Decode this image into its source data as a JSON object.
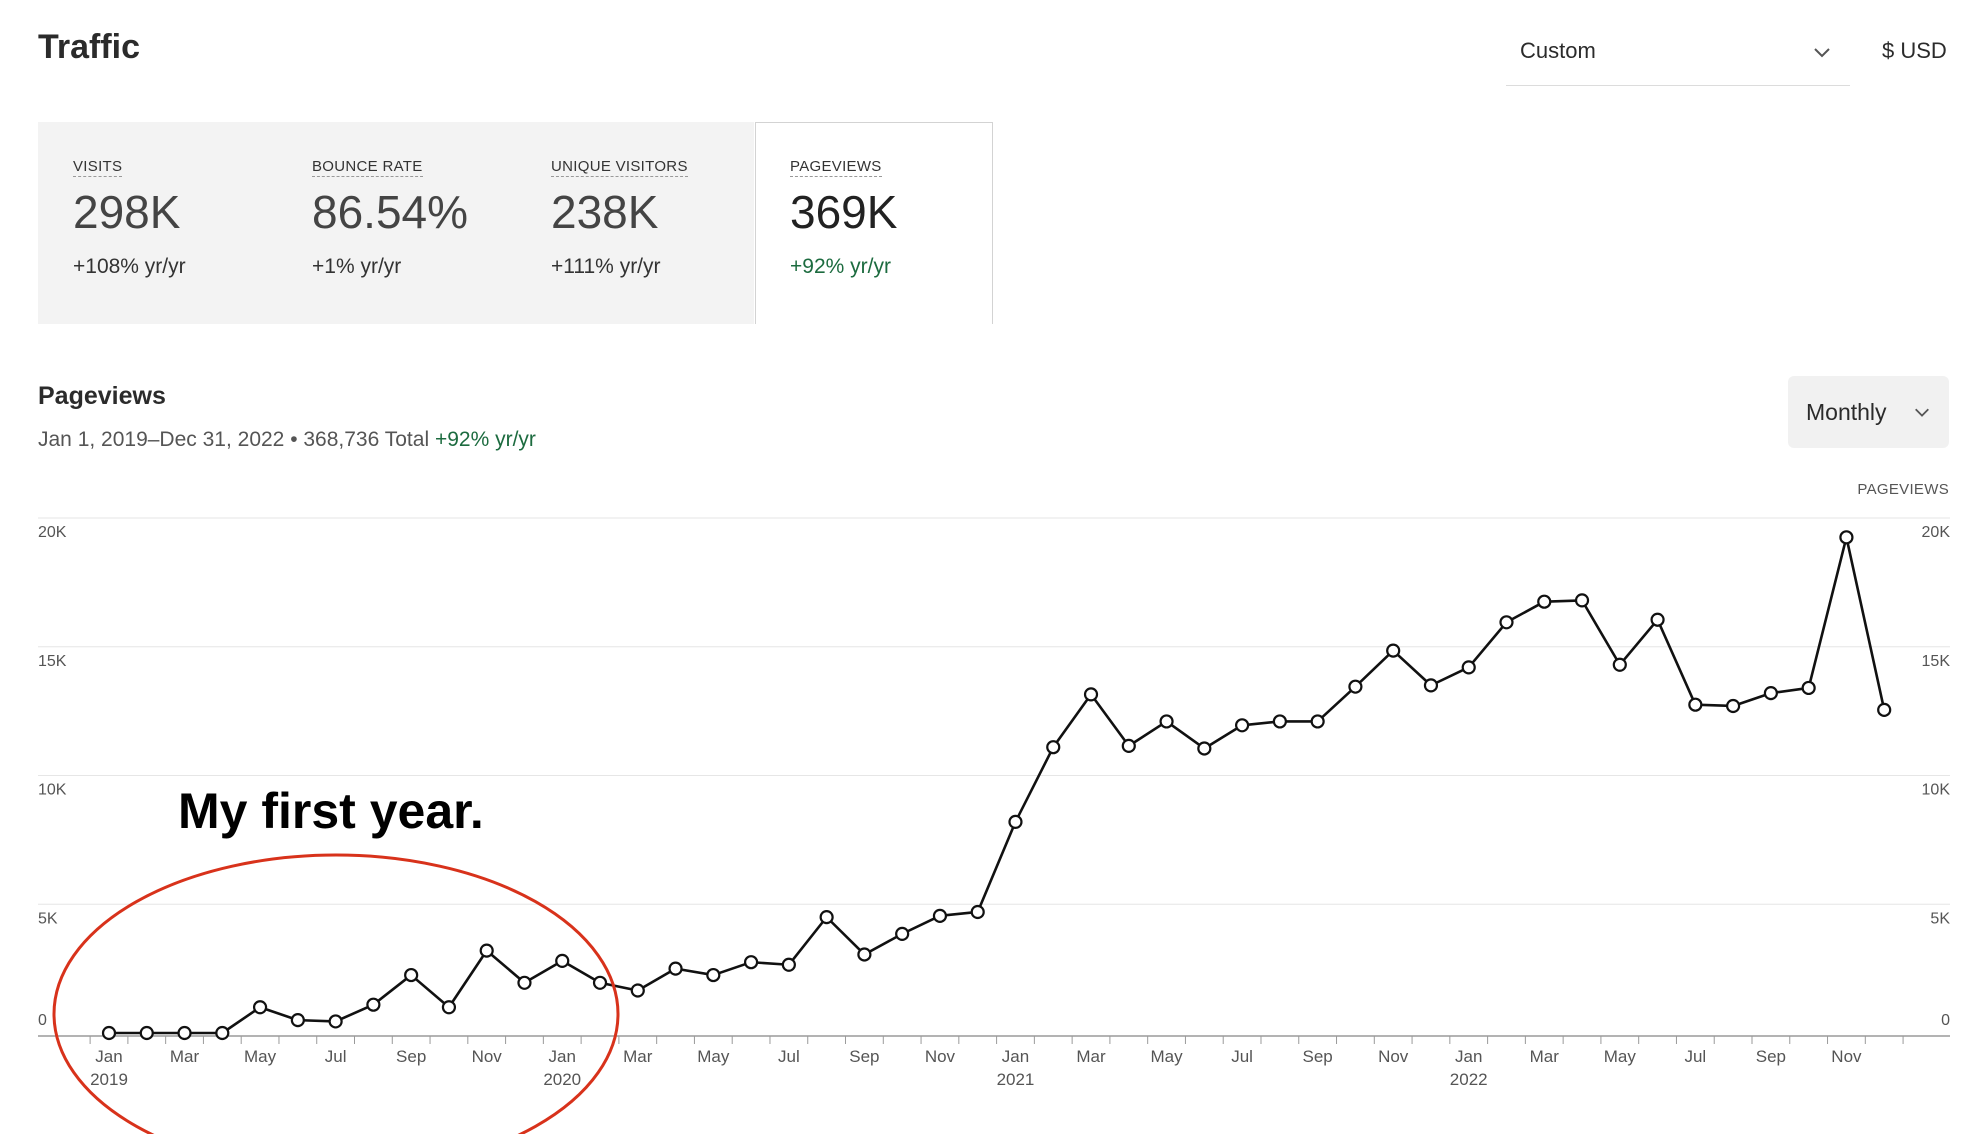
{
  "header": {
    "title": "Traffic",
    "range_select": "Custom",
    "currency": "$ USD"
  },
  "metrics": [
    {
      "label": "VISITS",
      "value": "298K",
      "change": "+108% yr/yr",
      "active": false
    },
    {
      "label": "BOUNCE RATE",
      "value": "86.54%",
      "change": "+1% yr/yr",
      "active": false
    },
    {
      "label": "UNIQUE VISITORS",
      "value": "238K",
      "change": "+111% yr/yr",
      "active": false
    },
    {
      "label": "PAGEVIEWS",
      "value": "369K",
      "change": "+92% yr/yr",
      "active": true
    }
  ],
  "section": {
    "title": "Pageviews",
    "subtitle_main": "Jan 1, 2019–Dec 31, 2022 • 368,736 Total ",
    "subtitle_change": "+92% yr/yr",
    "interval": "Monthly",
    "series_label": "PAGEVIEWS"
  },
  "annotation": {
    "text": "My first year."
  },
  "colors": {
    "positive": "#1c6b3f",
    "line": "#111111",
    "annotation_circle": "#d8321b",
    "grid": "#e6e6e6"
  },
  "chart_data": {
    "type": "line",
    "title": "",
    "xlabel": "",
    "ylabel": "PAGEVIEWS",
    "ylim": [
      0,
      20000
    ],
    "y_ticks": [
      0,
      5000,
      10000,
      15000,
      20000
    ],
    "y_tick_labels": [
      "0",
      "5K",
      "10K",
      "15K",
      "20K"
    ],
    "x": [
      "2019-01",
      "2019-02",
      "2019-03",
      "2019-04",
      "2019-05",
      "2019-06",
      "2019-07",
      "2019-08",
      "2019-09",
      "2019-10",
      "2019-11",
      "2019-12",
      "2020-01",
      "2020-02",
      "2020-03",
      "2020-04",
      "2020-05",
      "2020-06",
      "2020-07",
      "2020-08",
      "2020-09",
      "2020-10",
      "2020-11",
      "2020-12",
      "2021-01",
      "2021-02",
      "2021-03",
      "2021-04",
      "2021-05",
      "2021-06",
      "2021-07",
      "2021-08",
      "2021-09",
      "2021-10",
      "2021-11",
      "2021-12",
      "2022-01",
      "2022-02",
      "2022-03",
      "2022-04",
      "2022-05",
      "2022-06",
      "2022-07",
      "2022-08",
      "2022-09",
      "2022-10",
      "2022-11",
      "2022-12"
    ],
    "x_tick_labels": [
      {
        "month": "Jan",
        "year": "2019"
      },
      {
        "month": "Mar"
      },
      {
        "month": "May"
      },
      {
        "month": "Jul"
      },
      {
        "month": "Sep"
      },
      {
        "month": "Nov"
      },
      {
        "month": "Jan",
        "year": "2020"
      },
      {
        "month": "Mar"
      },
      {
        "month": "May"
      },
      {
        "month": "Jul"
      },
      {
        "month": "Sep"
      },
      {
        "month": "Nov"
      },
      {
        "month": "Jan",
        "year": "2021"
      },
      {
        "month": "Mar"
      },
      {
        "month": "May"
      },
      {
        "month": "Jul"
      },
      {
        "month": "Sep"
      },
      {
        "month": "Nov"
      },
      {
        "month": "Jan",
        "year": "2022"
      },
      {
        "month": "Mar"
      },
      {
        "month": "May"
      },
      {
        "month": "Jul"
      },
      {
        "month": "Sep"
      },
      {
        "month": "Nov"
      }
    ],
    "series": [
      {
        "values": [
          0,
          0,
          0,
          0,
          1000,
          500,
          450,
          1100,
          2250,
          1000,
          3200,
          1950,
          2800,
          1950,
          1650,
          2500,
          2250,
          2750,
          2650,
          4500,
          3050,
          3850,
          4550,
          4700,
          8200,
          11100,
          13150,
          11150,
          12100,
          11050,
          11950,
          12100,
          12100,
          13450,
          14850,
          13500,
          14200,
          15950,
          16750,
          16800,
          14300,
          16050,
          12750,
          12700,
          13200,
          13400,
          19250,
          12550
        ]
      }
    ],
    "grid": true,
    "legend": "none"
  }
}
